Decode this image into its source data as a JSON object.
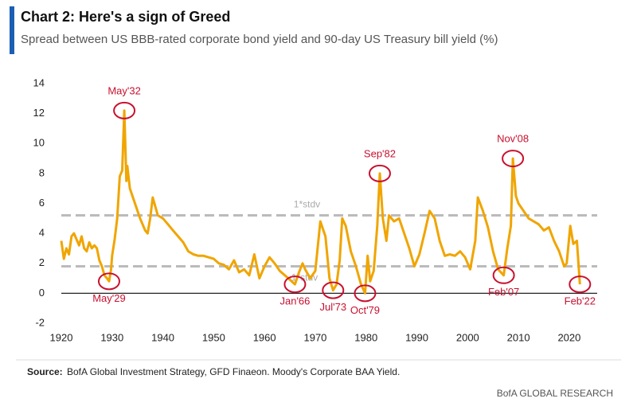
{
  "chart_data": {
    "type": "line",
    "title": "Chart 2: Here's a sign of Greed",
    "subtitle": "Spread between US BBB-rated corporate bond yield and 90-day US Treasury bill yield (%)",
    "source_label": "Source:",
    "source_text": "BofA Global Investment Strategy, GFD Finaeon. Moody's Corporate BAA Yield.",
    "footer": "BofA GLOBAL RESEARCH",
    "color": "#f0a500",
    "x": [
      1920,
      1920.5,
      1921,
      1921.5,
      1922,
      1922.5,
      1923,
      1923.5,
      1924,
      1924.5,
      1925,
      1925.5,
      1926,
      1926.5,
      1927,
      1927.5,
      1928,
      1928.5,
      1929,
      1929.4,
      1929.8,
      1930,
      1930.5,
      1931,
      1931.5,
      1932,
      1932.4,
      1932.8,
      1933,
      1933.5,
      1934,
      1934.5,
      1935,
      1935.5,
      1936,
      1936.5,
      1937,
      1937.5,
      1938,
      1938.5,
      1939,
      1940,
      1941,
      1942,
      1943,
      1944,
      1945,
      1946,
      1947,
      1948,
      1949,
      1950,
      1951,
      1952,
      1953,
      1954,
      1955,
      1956,
      1957,
      1958,
      1959,
      1960,
      1961,
      1962,
      1963,
      1964,
      1965,
      1966,
      1966.8,
      1967.5,
      1968,
      1969,
      1970,
      1971,
      1972,
      1972.8,
      1973.5,
      1974.2,
      1974.8,
      1975.3,
      1976,
      1977,
      1978,
      1979,
      1979.8,
      1980.3,
      1980.8,
      1981.5,
      1982.2,
      1982.7,
      1983.3,
      1984,
      1984.5,
      1985.5,
      1986.5,
      1987.5,
      1988.5,
      1989.5,
      1990.5,
      1991.5,
      1992.5,
      1993.5,
      1994.5,
      1995.5,
      1996.5,
      1997.5,
      1998.5,
      1999.5,
      2000.5,
      2001.5,
      2002,
      2003,
      2004,
      2005,
      2006,
      2007.1,
      2007.8,
      2008.5,
      2008.9,
      2009.5,
      2010,
      2011,
      2012,
      2013,
      2014,
      2015,
      2016,
      2017,
      2018,
      2019,
      2019.5,
      2020.2,
      2020.8,
      2021.5,
      2022.1
    ],
    "values": [
      3.5,
      2.3,
      3.0,
      2.6,
      3.8,
      4.0,
      3.6,
      3.2,
      3.8,
      3.0,
      2.8,
      3.4,
      3.0,
      3.2,
      3.0,
      2.2,
      1.8,
      1.2,
      1.0,
      0.8,
      1.6,
      2.5,
      3.6,
      5.0,
      7.8,
      8.2,
      12.2,
      7.5,
      8.5,
      7.0,
      6.5,
      6.0,
      5.5,
      5.0,
      4.6,
      4.2,
      4.0,
      5.0,
      6.4,
      5.8,
      5.2,
      5.0,
      4.6,
      4.2,
      3.8,
      3.4,
      2.8,
      2.6,
      2.5,
      2.5,
      2.4,
      2.3,
      2.0,
      1.9,
      1.6,
      2.2,
      1.4,
      1.6,
      1.2,
      2.6,
      1.0,
      1.8,
      2.4,
      2.0,
      1.5,
      1.2,
      0.9,
      0.6,
      1.4,
      2.0,
      1.6,
      1.0,
      1.5,
      4.8,
      3.8,
      1.0,
      0.2,
      0.6,
      2.2,
      5.0,
      4.5,
      2.8,
      1.8,
      0.6,
      0.0,
      2.5,
      0.8,
      1.5,
      4.5,
      8.0,
      5.0,
      3.5,
      5.2,
      4.8,
      5.0,
      4.0,
      3.0,
      1.8,
      2.6,
      4.0,
      5.5,
      5.0,
      3.5,
      2.5,
      2.6,
      2.5,
      2.8,
      2.4,
      1.6,
      3.5,
      6.4,
      5.5,
      4.4,
      2.8,
      1.6,
      1.2,
      3.0,
      4.5,
      9.0,
      6.5,
      6.0,
      5.5,
      5.0,
      4.8,
      4.6,
      4.2,
      4.4,
      3.5,
      2.8,
      1.8,
      2.0,
      4.5,
      3.3,
      3.5,
      0.6
    ],
    "xlim": [
      1920,
      2025.5
    ],
    "ylim": [
      -2,
      14
    ],
    "xticks": [
      1920,
      1930,
      1940,
      1950,
      1960,
      1970,
      1980,
      1990,
      2000,
      2010,
      2020
    ],
    "yticks": [
      -2,
      0,
      2,
      4,
      6,
      8,
      10,
      12,
      14
    ],
    "bands": [
      {
        "label": "1*stdv",
        "value": 5.2
      },
      {
        "label": "-1*stdv",
        "value": 1.8
      }
    ],
    "annotations": [
      {
        "label": "May'32",
        "x": 1932.4,
        "y": 12.2
      },
      {
        "label": "May'29",
        "x": 1929.4,
        "y": 0.8
      },
      {
        "label": "Jan'66",
        "x": 1966,
        "y": 0.6
      },
      {
        "label": "Jul'73",
        "x": 1973.5,
        "y": 0.2
      },
      {
        "label": "Oct'79",
        "x": 1979.8,
        "y": 0.0
      },
      {
        "label": "Sep'82",
        "x": 1982.7,
        "y": 8.0
      },
      {
        "label": "Feb'07",
        "x": 2007.1,
        "y": 1.2
      },
      {
        "label": "Nov'08",
        "x": 2008.9,
        "y": 9.0
      },
      {
        "label": "Feb'22",
        "x": 2022.1,
        "y": 0.6
      }
    ]
  }
}
